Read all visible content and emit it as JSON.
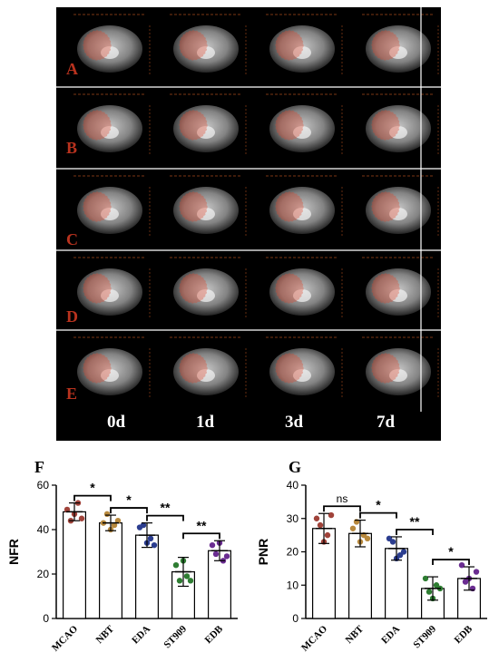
{
  "mri": {
    "row_labels": [
      "A",
      "B",
      "C",
      "D",
      "E"
    ],
    "time_labels": [
      "0d",
      "1d",
      "3d",
      "7d"
    ]
  },
  "colors": {
    "MCAO": "#a0433a",
    "NBT": "#b8893d",
    "EDA": "#2b3d8f",
    "ST909": "#2e7d32",
    "EDB": "#6a2c91",
    "lesion": "#e0462c"
  },
  "chart_data": [
    {
      "panel": "F",
      "type": "bar",
      "ylabel": "NFR",
      "ylim": [
        0,
        60
      ],
      "yticks": [
        0,
        20,
        40,
        60
      ],
      "categories": [
        "MCAO",
        "NBT",
        "EDA",
        "ST909",
        "EDB"
      ],
      "values": [
        48,
        43,
        37.5,
        21,
        30.5
      ],
      "errors": [
        4,
        3.5,
        5.5,
        6.5,
        4.5
      ],
      "points": [
        [
          49,
          44,
          47,
          52,
          45
        ],
        [
          43,
          47,
          40,
          42,
          44
        ],
        [
          41,
          42,
          34,
          36,
          33
        ],
        [
          24,
          17,
          26,
          19,
          17
        ],
        [
          33,
          29,
          34,
          26,
          28
        ]
      ],
      "significance": [
        {
          "from": 0,
          "to": 1,
          "label": "*"
        },
        {
          "from": 1,
          "to": 2,
          "label": "*"
        },
        {
          "from": 2,
          "to": 3,
          "label": "**"
        },
        {
          "from": 3,
          "to": 4,
          "label": "**"
        }
      ]
    },
    {
      "panel": "G",
      "type": "bar",
      "ylabel": "PNR",
      "ylim": [
        0,
        40
      ],
      "yticks": [
        0,
        10,
        20,
        30,
        40
      ],
      "categories": [
        "MCAO",
        "NBT",
        "EDA",
        "ST909",
        "EDB"
      ],
      "values": [
        27,
        25.5,
        21,
        9,
        12
      ],
      "errors": [
        4.5,
        4,
        3.5,
        3.5,
        3.5
      ],
      "points": [
        [
          30,
          28,
          23,
          25,
          31
        ],
        [
          27,
          29,
          23,
          25,
          24
        ],
        [
          24,
          23,
          18,
          19,
          20
        ],
        [
          12,
          8,
          6,
          10,
          9
        ],
        [
          16,
          11,
          12,
          9,
          14
        ]
      ],
      "significance": [
        {
          "from": 0,
          "to": 1,
          "label": "ns"
        },
        {
          "from": 1,
          "to": 2,
          "label": "*"
        },
        {
          "from": 2,
          "to": 3,
          "label": "**"
        },
        {
          "from": 3,
          "to": 4,
          "label": "*"
        }
      ]
    }
  ]
}
